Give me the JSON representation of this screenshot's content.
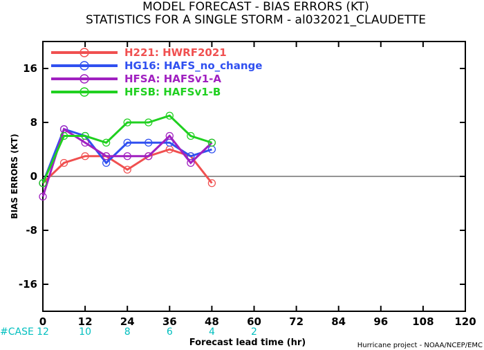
{
  "chart_data": {
    "type": "line",
    "title": "MODEL FORECAST - BIAS ERRORS (KT)",
    "subtitle": "STATISTICS FOR A SINGLE STORM - al032021_CLAUDETTE",
    "xlabel": "Forecast lead time (hr)",
    "ylabel": "BIAS ERRORS (KT)",
    "xlim": [
      0,
      120
    ],
    "ylim": [
      -20,
      20
    ],
    "xticks": [
      0,
      12,
      24,
      36,
      48,
      60,
      72,
      84,
      96,
      108,
      120
    ],
    "yticks": [
      -16,
      -8,
      0,
      8,
      16
    ],
    "legend_position": "top-left",
    "x": [
      0,
      6,
      12,
      18,
      24,
      30,
      36,
      42,
      48
    ],
    "series": [
      {
        "name": "H221: HWRF2021",
        "color": "#f05050",
        "values": [
          -1,
          2,
          3,
          3,
          1,
          3,
          4,
          3,
          -1
        ]
      },
      {
        "name": "HG16: HAFS_no_change",
        "color": "#3050f0",
        "values": [
          -1,
          7,
          6,
          2,
          5,
          5,
          5,
          3,
          4
        ]
      },
      {
        "name": "HFSA: HAFSv1-A",
        "color": "#a020c0",
        "values": [
          -3,
          7,
          5,
          3,
          3,
          3,
          6,
          2,
          5
        ]
      },
      {
        "name": "HFSB: HAFSv1-B",
        "color": "#20d020",
        "values": [
          -1,
          6,
          6,
          5,
          8,
          8,
          9,
          6,
          5
        ]
      }
    ],
    "case_label": "#CASE",
    "cases": [
      {
        "x": 0,
        "count": "12"
      },
      {
        "x": 12,
        "count": "10"
      },
      {
        "x": 24,
        "count": "8"
      },
      {
        "x": 36,
        "count": "6"
      },
      {
        "x": 48,
        "count": "4"
      },
      {
        "x": 60,
        "count": "2"
      }
    ],
    "credit": "Hurricane project - NOAA/NCEP/EMC",
    "zero_line": true,
    "grid": false
  }
}
